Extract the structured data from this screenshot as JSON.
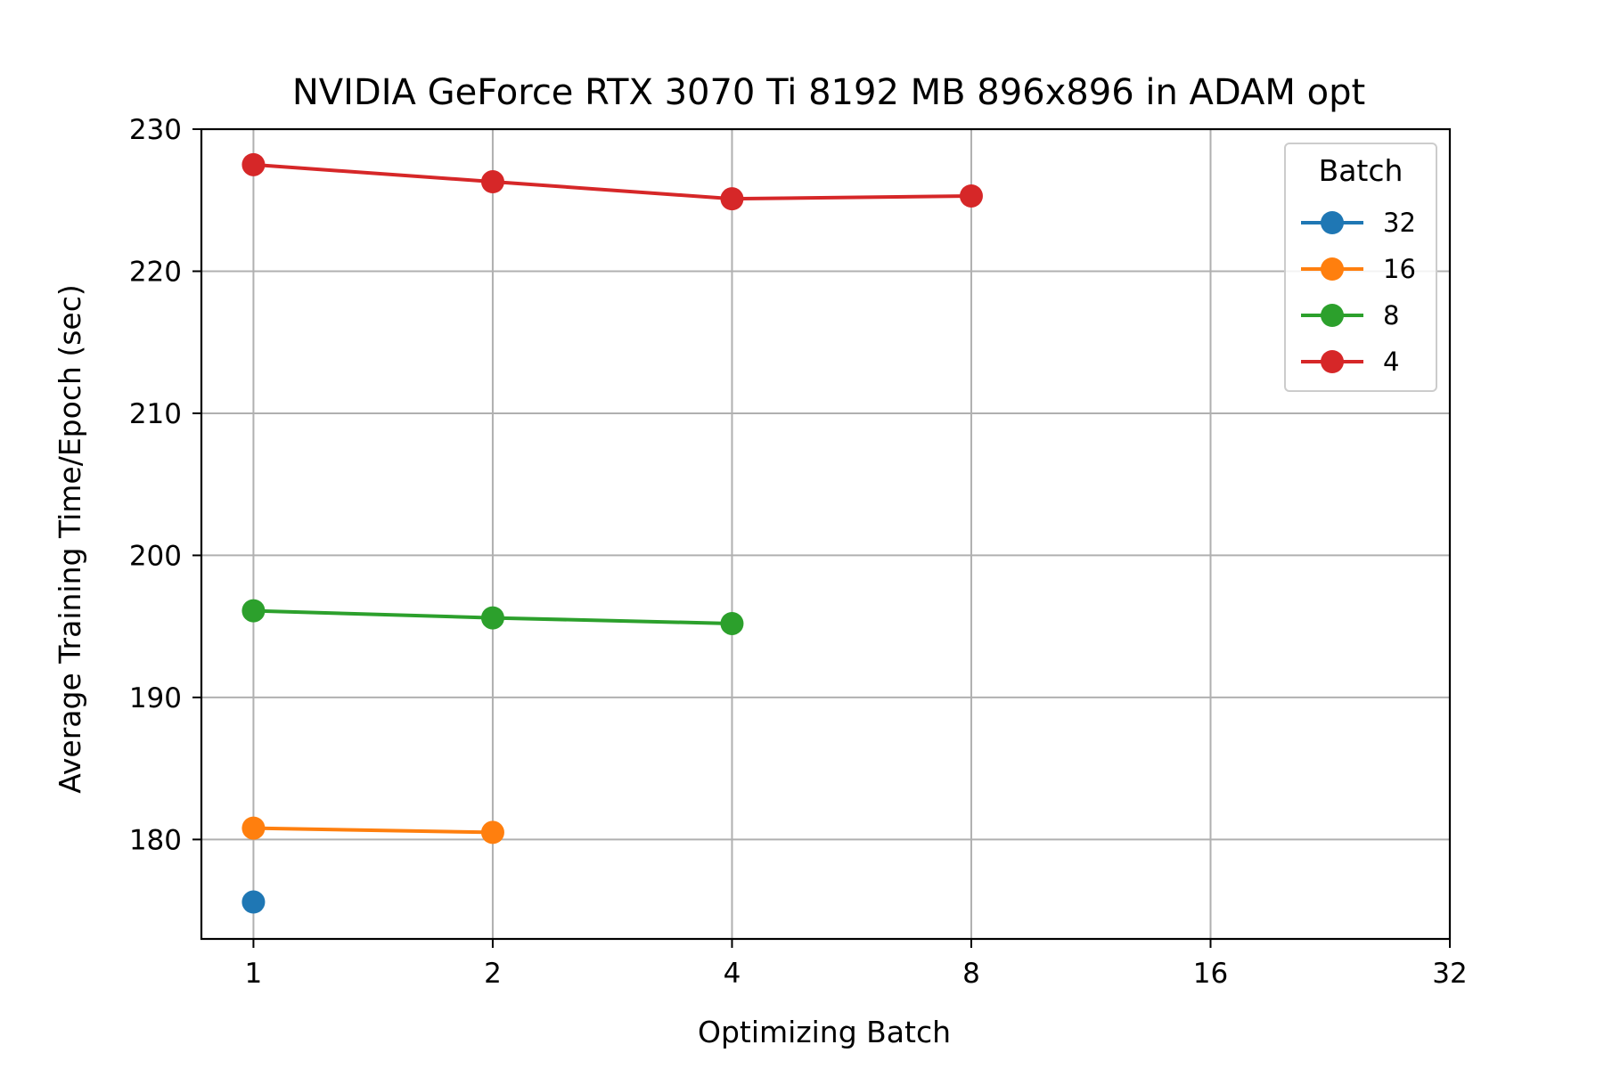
{
  "chart_data": {
    "type": "line",
    "title": "NVIDIA GeForce RTX 3070 Ti 8192 MB 896x896 in ADAM opt",
    "xlabel": "Optimizing Batch",
    "ylabel": "Average Training Time/Epoch (sec)",
    "x_scale": "log2",
    "x_ticks": [
      1,
      2,
      4,
      8,
      16,
      32
    ],
    "x_tick_labels": [
      "1",
      "2",
      "4",
      "8",
      "16",
      "32"
    ],
    "xlim": [
      0.86,
      32
    ],
    "y_ticks": [
      180,
      190,
      200,
      210,
      220,
      230
    ],
    "y_tick_labels": [
      "180",
      "190",
      "200",
      "210",
      "220",
      "230"
    ],
    "ylim": [
      173.0,
      230.0
    ],
    "grid": true,
    "legend": {
      "title": "Batch",
      "placement": "top-right"
    },
    "series": [
      {
        "name": "32",
        "color": "#1f77b4",
        "x": [
          1
        ],
        "y": [
          175.6
        ]
      },
      {
        "name": "16",
        "color": "#ff7f0e",
        "x": [
          1,
          2
        ],
        "y": [
          180.8,
          180.5
        ]
      },
      {
        "name": "8",
        "color": "#2ca02c",
        "x": [
          1,
          2,
          4
        ],
        "y": [
          196.1,
          195.6,
          195.2
        ]
      },
      {
        "name": "4",
        "color": "#d62728",
        "x": [
          1,
          2,
          4,
          8
        ],
        "y": [
          227.5,
          226.3,
          225.1,
          225.3
        ]
      }
    ]
  }
}
